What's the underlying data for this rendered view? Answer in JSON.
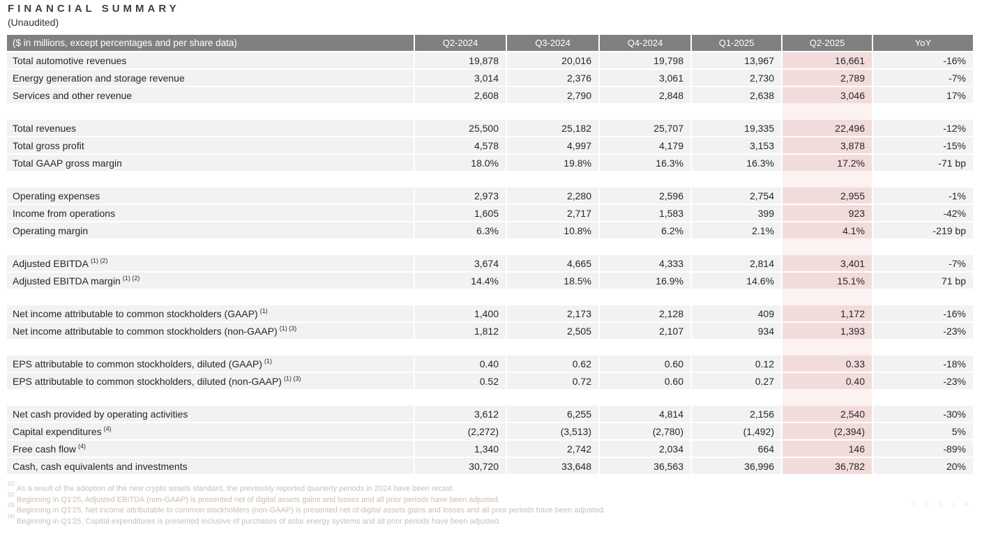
{
  "page": {
    "title": "FINANCIAL SUMMARY",
    "subtitle": "(Unaudited)",
    "watermark": "T E S L A"
  },
  "colors": {
    "header_bg": "#808080",
    "header_text": "#ffffff",
    "row_bg": "#f2f2f2",
    "highlight_bg": "#f2dcdb",
    "highlight_faint_bg": "#fbf2f1",
    "footnote_text": "#cabfb6",
    "title_text": "#3f3f3f",
    "body_text": "#262626"
  },
  "table": {
    "corner_label": "($ in millions, except percentages and per share data)",
    "columns": [
      "Q2-2024",
      "Q3-2024",
      "Q4-2024",
      "Q1-2025",
      "Q2-2025",
      "YoY"
    ],
    "highlight_column": "Q2-2025",
    "sections": [
      {
        "rows": [
          {
            "label": "Total automotive revenues",
            "sup": "",
            "values": [
              "19,878",
              "20,016",
              "19,798",
              "13,967",
              "16,661",
              "-16%"
            ]
          },
          {
            "label": "Energy generation and storage revenue",
            "sup": "",
            "values": [
              "3,014",
              "2,376",
              "3,061",
              "2,730",
              "2,789",
              "-7%"
            ]
          },
          {
            "label": "Services and other revenue",
            "sup": "",
            "values": [
              "2,608",
              "2,790",
              "2,848",
              "2,638",
              "3,046",
              "17%"
            ]
          }
        ]
      },
      {
        "rows": [
          {
            "label": "Total revenues",
            "sup": "",
            "values": [
              "25,500",
              "25,182",
              "25,707",
              "19,335",
              "22,496",
              "-12%"
            ]
          },
          {
            "label": "Total gross profit",
            "sup": "",
            "values": [
              "4,578",
              "4,997",
              "4,179",
              "3,153",
              "3,878",
              "-15%"
            ]
          },
          {
            "label": "Total GAAP gross margin",
            "sup": "",
            "values": [
              "18.0%",
              "19.8%",
              "16.3%",
              "16.3%",
              "17.2%",
              "-71 bp"
            ]
          }
        ]
      },
      {
        "rows": [
          {
            "label": "Operating expenses",
            "sup": "",
            "values": [
              "2,973",
              "2,280",
              "2,596",
              "2,754",
              "2,955",
              "-1%"
            ]
          },
          {
            "label": "Income from operations",
            "sup": "",
            "values": [
              "1,605",
              "2,717",
              "1,583",
              "399",
              "923",
              "-42%"
            ]
          },
          {
            "label": "Operating margin",
            "sup": "",
            "values": [
              "6.3%",
              "10.8%",
              "6.2%",
              "2.1%",
              "4.1%",
              "-219 bp"
            ]
          }
        ]
      },
      {
        "rows": [
          {
            "label": "Adjusted EBITDA",
            "sup": "(1) (2)",
            "values": [
              "3,674",
              "4,665",
              "4,333",
              "2,814",
              "3,401",
              "-7%"
            ]
          },
          {
            "label": "Adjusted EBITDA margin",
            "sup": "(1) (2)",
            "values": [
              "14.4%",
              "18.5%",
              "16.9%",
              "14.6%",
              "15.1%",
              "71 bp"
            ]
          }
        ]
      },
      {
        "rows": [
          {
            "label": "Net income attributable to common stockholders (GAAP)",
            "sup": "(1)",
            "values": [
              "1,400",
              "2,173",
              "2,128",
              "409",
              "1,172",
              "-16%"
            ]
          },
          {
            "label": "Net income attributable to common stockholders (non-GAAP)",
            "sup": "(1) (3)",
            "values": [
              "1,812",
              "2,505",
              "2,107",
              "934",
              "1,393",
              "-23%"
            ]
          }
        ]
      },
      {
        "rows": [
          {
            "label": "EPS attributable to common stockholders, diluted (GAAP)",
            "sup": "(1)",
            "values": [
              "0.40",
              "0.62",
              "0.60",
              "0.12",
              "0.33",
              "-18%"
            ]
          },
          {
            "label": "EPS attributable to common stockholders, diluted (non-GAAP)",
            "sup": "(1) (3)",
            "values": [
              "0.52",
              "0.72",
              "0.60",
              "0.27",
              "0.40",
              "-23%"
            ]
          }
        ]
      },
      {
        "rows": [
          {
            "label": "Net cash provided by operating activities",
            "sup": "",
            "values": [
              "3,612",
              "6,255",
              "4,814",
              "2,156",
              "2,540",
              "-30%"
            ]
          },
          {
            "label": "Capital expenditures",
            "sup": "(4)",
            "values": [
              "(2,272)",
              "(3,513)",
              "(2,780)",
              "(1,492)",
              "(2,394)",
              "5%"
            ]
          },
          {
            "label": "Free cash flow",
            "sup": "(4)",
            "values": [
              "1,340",
              "2,742",
              "2,034",
              "664",
              "146",
              "-89%"
            ]
          },
          {
            "label": "Cash, cash equivalents and investments",
            "sup": "",
            "values": [
              "30,720",
              "33,648",
              "36,563",
              "36,996",
              "36,782",
              "20%"
            ]
          }
        ]
      }
    ]
  },
  "footnotes": [
    {
      "marker": "(1)",
      "text": "As a result of the adoption of the new crypto assets standard, the previously reported quarterly periods in 2024 have been recast."
    },
    {
      "marker": "(2)",
      "text": "Beginning in Q1'25, Adjusted EBITDA (non-GAAP) is presented net of digital assets gains and losses and all prior periods have been adjusted."
    },
    {
      "marker": "(3)",
      "text": "Beginning in Q1'25, Net income attributable to common stockholders (non-GAAP) is presented net of digital assets gains and losses and all prior periods have been adjusted."
    },
    {
      "marker": "(4)",
      "text": "Beginning in Q1'25, Capital expenditures is presented inclusive of purchases of solar energy systems and all prior periods have been adjusted."
    }
  ]
}
